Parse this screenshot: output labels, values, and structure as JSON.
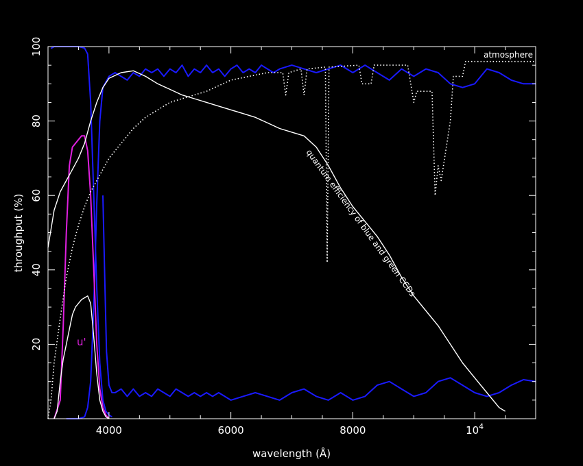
{
  "chart_data": {
    "type": "line",
    "xlabel": "wavelength (Å)",
    "ylabel": "throughput (%)",
    "xlim": [
      3000,
      11000
    ],
    "ylim": [
      0,
      100
    ],
    "x_ticks": [
      {
        "value": 4000,
        "label": "4000"
      },
      {
        "value": 6000,
        "label": "6000"
      },
      {
        "value": 8000,
        "label": "8000"
      },
      {
        "value": 10000,
        "label": "10",
        "sup": "4"
      }
    ],
    "y_ticks": [
      20,
      40,
      60,
      80,
      100
    ],
    "colors": {
      "background": "#000000",
      "axes": "#ffffff",
      "filter": "#1a1aff",
      "u_prime": "#e020e0",
      "product": "#ffffff",
      "qe": "#ffffff",
      "atmosphere": "#ffffff"
    },
    "annotations": {
      "atmosphere": "atmosphere",
      "qe": "quantum efficiency of blue and green CCDs",
      "u_prime": "u'"
    },
    "series": [
      {
        "key": "filter",
        "style": "solid",
        "color": "#1a1aff",
        "points": [
          [
            3050,
            99.5
          ],
          [
            3100,
            100
          ],
          [
            3500,
            100
          ],
          [
            3600,
            99.6
          ],
          [
            3650,
            98
          ],
          [
            3700,
            85
          ],
          [
            3750,
            60
          ],
          [
            3800,
            35
          ],
          [
            3850,
            15
          ],
          [
            3900,
            5
          ],
          [
            3950,
            2
          ],
          [
            4000,
            1
          ],
          [
            4050,
            0.5
          ]
        ]
      },
      {
        "key": "filter",
        "style": "solid",
        "color": "#1a1aff",
        "points": [
          [
            3300,
            0
          ],
          [
            3500,
            0
          ],
          [
            3600,
            0.5
          ],
          [
            3650,
            3
          ],
          [
            3700,
            10
          ],
          [
            3750,
            30
          ],
          [
            3800,
            58
          ],
          [
            3850,
            80
          ],
          [
            3900,
            89
          ],
          [
            4000,
            92
          ],
          [
            4100,
            93
          ],
          [
            4200,
            92
          ],
          [
            4300,
            91
          ],
          [
            4400,
            93
          ],
          [
            4500,
            92
          ],
          [
            4600,
            94
          ],
          [
            4700,
            93
          ],
          [
            4800,
            94
          ],
          [
            4900,
            92
          ],
          [
            5000,
            94
          ],
          [
            5100,
            93
          ],
          [
            5200,
            95
          ],
          [
            5300,
            92
          ],
          [
            5400,
            94
          ],
          [
            5500,
            93
          ],
          [
            5600,
            95
          ],
          [
            5700,
            93
          ],
          [
            5800,
            94
          ],
          [
            5900,
            92
          ],
          [
            6000,
            94
          ],
          [
            6100,
            95
          ],
          [
            6200,
            93
          ],
          [
            6300,
            94
          ],
          [
            6400,
            93
          ],
          [
            6500,
            95
          ],
          [
            6600,
            94
          ],
          [
            6700,
            93
          ],
          [
            6800,
            94
          ],
          [
            7000,
            95
          ],
          [
            7200,
            94
          ],
          [
            7400,
            93
          ],
          [
            7600,
            94
          ],
          [
            7800,
            95
          ],
          [
            8000,
            93
          ],
          [
            8200,
            95
          ],
          [
            8400,
            93
          ],
          [
            8600,
            91
          ],
          [
            8800,
            94
          ],
          [
            9000,
            92
          ],
          [
            9200,
            94
          ],
          [
            9400,
            93
          ],
          [
            9600,
            90
          ],
          [
            9800,
            89
          ],
          [
            10000,
            90
          ],
          [
            10200,
            94
          ],
          [
            10400,
            93
          ],
          [
            10600,
            91
          ],
          [
            10800,
            90
          ],
          [
            11000,
            90
          ]
        ]
      },
      {
        "key": "filter",
        "style": "solid",
        "color": "#1a1aff",
        "points": [
          [
            3900,
            60
          ],
          [
            3930,
            38
          ],
          [
            3960,
            18
          ],
          [
            4000,
            9
          ],
          [
            4050,
            7
          ],
          [
            4100,
            7
          ],
          [
            4200,
            8
          ],
          [
            4300,
            6
          ],
          [
            4400,
            8
          ],
          [
            4500,
            6
          ],
          [
            4600,
            7
          ],
          [
            4700,
            6
          ],
          [
            4800,
            8
          ],
          [
            4900,
            7
          ],
          [
            5000,
            6
          ],
          [
            5100,
            8
          ],
          [
            5200,
            7
          ],
          [
            5300,
            6
          ],
          [
            5400,
            7
          ],
          [
            5500,
            6
          ],
          [
            5600,
            7
          ],
          [
            5700,
            6
          ],
          [
            5800,
            7
          ],
          [
            5900,
            6
          ],
          [
            6000,
            5
          ],
          [
            6200,
            6
          ],
          [
            6400,
            7
          ],
          [
            6600,
            6
          ],
          [
            6800,
            5
          ],
          [
            7000,
            7
          ],
          [
            7200,
            8
          ],
          [
            7400,
            6
          ],
          [
            7600,
            5
          ],
          [
            7800,
            7
          ],
          [
            8000,
            5
          ],
          [
            8200,
            6
          ],
          [
            8400,
            9
          ],
          [
            8600,
            10
          ],
          [
            8800,
            8
          ],
          [
            9000,
            6
          ],
          [
            9200,
            7
          ],
          [
            9400,
            10
          ],
          [
            9600,
            11
          ],
          [
            9800,
            9
          ],
          [
            10000,
            7
          ],
          [
            10200,
            6
          ],
          [
            10400,
            7
          ],
          [
            10600,
            9
          ],
          [
            10800,
            10.5
          ],
          [
            11000,
            10
          ]
        ]
      },
      {
        "key": "u_prime",
        "style": "solid",
        "color": "#e020e0",
        "points": [
          [
            3100,
            0
          ],
          [
            3200,
            5
          ],
          [
            3250,
            25
          ],
          [
            3300,
            50
          ],
          [
            3350,
            68
          ],
          [
            3400,
            73
          ],
          [
            3450,
            74
          ],
          [
            3500,
            75
          ],
          [
            3550,
            76
          ],
          [
            3600,
            76
          ],
          [
            3650,
            72
          ],
          [
            3700,
            60
          ],
          [
            3750,
            40
          ],
          [
            3800,
            20
          ],
          [
            3850,
            8
          ],
          [
            3900,
            3
          ],
          [
            3950,
            1
          ],
          [
            4000,
            0
          ]
        ]
      },
      {
        "key": "product",
        "style": "solid",
        "color": "#ffffff",
        "points": [
          [
            3100,
            0
          ],
          [
            3150,
            2
          ],
          [
            3200,
            10
          ],
          [
            3250,
            16
          ],
          [
            3300,
            20
          ],
          [
            3350,
            24
          ],
          [
            3400,
            28
          ],
          [
            3450,
            30
          ],
          [
            3500,
            31
          ],
          [
            3550,
            32
          ],
          [
            3600,
            32.5
          ],
          [
            3650,
            33
          ],
          [
            3700,
            31
          ],
          [
            3750,
            22
          ],
          [
            3800,
            12
          ],
          [
            3850,
            5
          ],
          [
            3900,
            2
          ],
          [
            3950,
            0.5
          ],
          [
            4000,
            0
          ]
        ]
      },
      {
        "key": "qe",
        "style": "solid",
        "color": "#ffffff",
        "points": [
          [
            3000,
            46
          ],
          [
            3100,
            56
          ],
          [
            3200,
            61
          ],
          [
            3300,
            64
          ],
          [
            3400,
            67
          ],
          [
            3500,
            70
          ],
          [
            3600,
            74
          ],
          [
            3700,
            80
          ],
          [
            3800,
            85
          ],
          [
            3900,
            89
          ],
          [
            4000,
            91.5
          ],
          [
            4200,
            93
          ],
          [
            4400,
            93.5
          ],
          [
            4600,
            92
          ],
          [
            4800,
            90
          ],
          [
            5000,
            88.5
          ],
          [
            5200,
            87
          ],
          [
            5400,
            86
          ],
          [
            5600,
            85
          ],
          [
            5800,
            84
          ],
          [
            6000,
            83
          ],
          [
            6200,
            82
          ],
          [
            6400,
            81
          ],
          [
            6600,
            79.5
          ],
          [
            6800,
            78
          ],
          [
            7000,
            77
          ],
          [
            7200,
            76
          ],
          [
            7400,
            73
          ],
          [
            7600,
            68
          ],
          [
            7800,
            62
          ],
          [
            8000,
            57
          ],
          [
            8200,
            53
          ],
          [
            8400,
            49
          ],
          [
            8600,
            44
          ],
          [
            8800,
            38
          ],
          [
            9000,
            33
          ],
          [
            9200,
            29
          ],
          [
            9400,
            25
          ],
          [
            9600,
            20
          ],
          [
            9800,
            15
          ],
          [
            10000,
            11
          ],
          [
            10200,
            7
          ],
          [
            10400,
            3
          ],
          [
            10500,
            2
          ]
        ]
      },
      {
        "key": "atmosphere",
        "style": "dotted",
        "color": "#ffffff",
        "points": [
          [
            3000,
            0
          ],
          [
            3050,
            5
          ],
          [
            3100,
            15
          ],
          [
            3200,
            27
          ],
          [
            3300,
            38
          ],
          [
            3400,
            46
          ],
          [
            3500,
            52
          ],
          [
            3600,
            57
          ],
          [
            3700,
            61
          ],
          [
            3800,
            64
          ],
          [
            3900,
            67
          ],
          [
            4000,
            70
          ],
          [
            4200,
            74
          ],
          [
            4400,
            78
          ],
          [
            4600,
            81
          ],
          [
            4800,
            83
          ],
          [
            5000,
            85
          ],
          [
            5200,
            86
          ],
          [
            5400,
            87
          ],
          [
            5600,
            88
          ],
          [
            5800,
            89.5
          ],
          [
            6000,
            91
          ],
          [
            6300,
            92
          ],
          [
            6600,
            93
          ],
          [
            6850,
            93
          ],
          [
            6900,
            87
          ],
          [
            6950,
            93
          ],
          [
            7150,
            94
          ],
          [
            7200,
            87
          ],
          [
            7250,
            94
          ],
          [
            7550,
            94.5
          ],
          [
            7580,
            42
          ],
          [
            7610,
            94.5
          ],
          [
            8100,
            95
          ],
          [
            8150,
            90
          ],
          [
            8300,
            90
          ],
          [
            8350,
            95
          ],
          [
            8900,
            95
          ],
          [
            9000,
            85
          ],
          [
            9050,
            88
          ],
          [
            9300,
            88
          ],
          [
            9350,
            60
          ],
          [
            9400,
            68
          ],
          [
            9450,
            64
          ],
          [
            9600,
            80
          ],
          [
            9650,
            92
          ],
          [
            9800,
            92
          ],
          [
            9850,
            96
          ],
          [
            11000,
            96
          ]
        ]
      }
    ]
  }
}
